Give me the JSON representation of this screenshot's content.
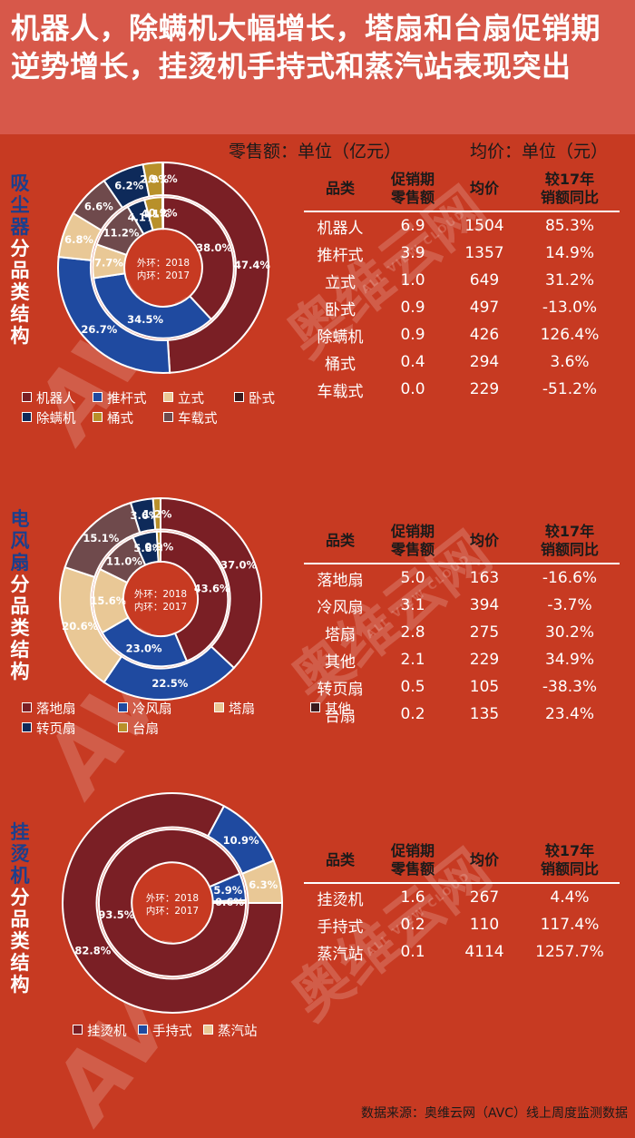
{
  "title": "机器人，除螨机大幅增长，塔扇和台扇促销期逆势增长，挂烫机手持式和蒸汽站表现突出",
  "units": {
    "sales": "零售额：单位（亿元）",
    "price": "均价：单位（元）"
  },
  "watermark": {
    "cn": "奥维云网",
    "en": "ALL VIEW CLOUD",
    "logo": "AVC"
  },
  "source": "数据来源：奥维云网（AVC）线上周度监测数据",
  "table_headers": {
    "category": "品类",
    "sales": "促销期\n零售额",
    "price": "均价",
    "yoy": "较17年\n销额同比"
  },
  "ring_labels": {
    "outer": "外环：2018",
    "inner": "内环：2017"
  },
  "colors": {
    "background": "#c73a22",
    "maroon": "#7a1f25",
    "blue": "#1f4aa0",
    "tan": "#e9c896",
    "dark": "#3a1a1d",
    "navy": "#0e2a5a",
    "gold": "#b8902a",
    "mauve": "#6f4a4c"
  },
  "chart_data": [
    {
      "type": "table",
      "section_label_top": "吸尘器",
      "section_label_bottom": "分品类结构",
      "columns": [
        "品类",
        "促销期零售额",
        "均价",
        "较17年销额同比"
      ],
      "rows": [
        [
          "机器人",
          "6.9",
          "1504",
          "85.3%"
        ],
        [
          "推杆式",
          "3.9",
          "1357",
          "14.9%"
        ],
        [
          "立式",
          "1.0",
          "649",
          "31.2%"
        ],
        [
          "卧式",
          "0.9",
          "497",
          "-13.0%"
        ],
        [
          "除螨机",
          "0.9",
          "426",
          "126.4%"
        ],
        [
          "桶式",
          "0.4",
          "294",
          "3.6%"
        ],
        [
          "车载式",
          "0.0",
          "229",
          "-51.2%"
        ]
      ],
      "donut": {
        "type": "pie",
        "start_deg": -90,
        "legend": [
          {
            "name": "机器人",
            "color": "#7a1f25"
          },
          {
            "name": "推杆式",
            "color": "#1f4aa0"
          },
          {
            "name": "立式",
            "color": "#e9c896"
          },
          {
            "name": "卧式",
            "color": "#3a1a1d"
          },
          {
            "name": "除螨机",
            "color": "#0e2a5a"
          },
          {
            "name": "桶式",
            "color": "#b8902a"
          },
          {
            "name": "车载式",
            "color": "#6f4a4c"
          }
        ],
        "outer": [
          {
            "value": 47.4,
            "label": "47.4%",
            "color": "#7a1f25"
          },
          {
            "value": 26.7,
            "label": "26.7%",
            "color": "#1f4aa0"
          },
          {
            "value": 6.8,
            "label": "6.8%",
            "color": "#e9c896"
          },
          {
            "value": 6.6,
            "label": "6.6%",
            "color": "#6f4a4c"
          },
          {
            "value": 6.2,
            "label": "6.2%",
            "color": "#0e2a5a"
          },
          {
            "value": 2.9,
            "label": "2.9%",
            "color": "#b8902a"
          },
          {
            "value": 0.1,
            "label": "0.1%",
            "color": "#7a1f25"
          }
        ],
        "inner": [
          {
            "value": 38.0,
            "label": "38.0%",
            "color": "#7a1f25"
          },
          {
            "value": 34.5,
            "label": "34.5%",
            "color": "#1f4aa0"
          },
          {
            "value": 7.7,
            "label": "7.7%",
            "color": "#e9c896"
          },
          {
            "value": 11.2,
            "label": "11.2%",
            "color": "#6f4a4c"
          },
          {
            "value": 4.1,
            "label": "4.1%",
            "color": "#0e2a5a"
          },
          {
            "value": 4.1,
            "label": "4.1%",
            "color": "#b8902a"
          },
          {
            "value": 0.2,
            "label": "0.2%",
            "color": "#7a1f25"
          }
        ]
      }
    },
    {
      "type": "table",
      "section_label_top": "电风扇",
      "section_label_bottom": "分品类结构",
      "columns": [
        "品类",
        "促销期零售额",
        "均价",
        "较17年销额同比"
      ],
      "rows": [
        [
          "落地扇",
          "5.0",
          "163",
          "-16.6%"
        ],
        [
          "冷风扇",
          "3.1",
          "394",
          "-3.7%"
        ],
        [
          "塔扇",
          "2.8",
          "275",
          "30.2%"
        ],
        [
          "其他",
          "2.1",
          "229",
          "34.9%"
        ],
        [
          "转页扇",
          "0.5",
          "105",
          "-38.3%"
        ],
        [
          "台扇",
          "0.2",
          "135",
          "23.4%"
        ]
      ],
      "donut": {
        "type": "pie",
        "start_deg": -90,
        "legend": [
          {
            "name": "落地扇",
            "color": "#7a1f25"
          },
          {
            "name": "冷风扇",
            "color": "#1f4aa0"
          },
          {
            "name": "塔扇",
            "color": "#e9c896"
          },
          {
            "name": "其他",
            "color": "#3a1a1d"
          },
          {
            "name": "转页扇",
            "color": "#0e2a5a"
          },
          {
            "name": "台扇",
            "color": "#b8902a"
          }
        ],
        "outer": [
          {
            "value": 37.0,
            "label": "37.0%",
            "color": "#7a1f25"
          },
          {
            "value": 22.5,
            "label": "22.5%",
            "color": "#1f4aa0"
          },
          {
            "value": 20.6,
            "label": "20.6%",
            "color": "#e9c896"
          },
          {
            "value": 15.1,
            "label": "15.1%",
            "color": "#6f4a4c"
          },
          {
            "value": 3.6,
            "label": "3.6%",
            "color": "#0e2a5a"
          },
          {
            "value": 1.2,
            "label": "1.2%",
            "color": "#b8902a"
          }
        ],
        "inner": [
          {
            "value": 43.6,
            "label": "43.6%",
            "color": "#7a1f25"
          },
          {
            "value": 23.0,
            "label": "23.0%",
            "color": "#1f4aa0"
          },
          {
            "value": 15.6,
            "label": "15.6%",
            "color": "#e9c896"
          },
          {
            "value": 11.0,
            "label": "11.0%",
            "color": "#6f4a4c"
          },
          {
            "value": 5.8,
            "label": "5.8%",
            "color": "#0e2a5a"
          },
          {
            "value": 0.9,
            "label": "0.9%",
            "color": "#b8902a"
          }
        ]
      }
    },
    {
      "type": "table",
      "section_label_top": "挂烫机",
      "section_label_bottom": "分品类结构",
      "columns": [
        "品类",
        "促销期零售额",
        "均价",
        "较17年销额同比"
      ],
      "rows": [
        [
          "挂烫机",
          "1.6",
          "267",
          "4.4%"
        ],
        [
          "手持式",
          "0.2",
          "110",
          "117.4%"
        ],
        [
          "蒸汽站",
          "0.1",
          "4114",
          "1257.7%"
        ]
      ],
      "donut": {
        "type": "pie",
        "start_deg": 0,
        "legend": [
          {
            "name": "挂烫机",
            "color": "#7a1f25"
          },
          {
            "name": "手持式",
            "color": "#1f4aa0"
          },
          {
            "name": "蒸汽站",
            "color": "#e9c896"
          }
        ],
        "outer": [
          {
            "value": 82.8,
            "label": "82.8%",
            "color": "#7a1f25"
          },
          {
            "value": 10.9,
            "label": "10.9%",
            "color": "#1f4aa0"
          },
          {
            "value": 6.3,
            "label": "6.3%",
            "color": "#e9c896"
          }
        ],
        "inner": [
          {
            "value": 93.5,
            "label": "93.5%",
            "color": "#7a1f25"
          },
          {
            "value": 5.9,
            "label": "5.9%",
            "color": "#1f4aa0"
          },
          {
            "value": 0.6,
            "label": "0.6%",
            "color": "#e9c896"
          }
        ]
      }
    }
  ]
}
